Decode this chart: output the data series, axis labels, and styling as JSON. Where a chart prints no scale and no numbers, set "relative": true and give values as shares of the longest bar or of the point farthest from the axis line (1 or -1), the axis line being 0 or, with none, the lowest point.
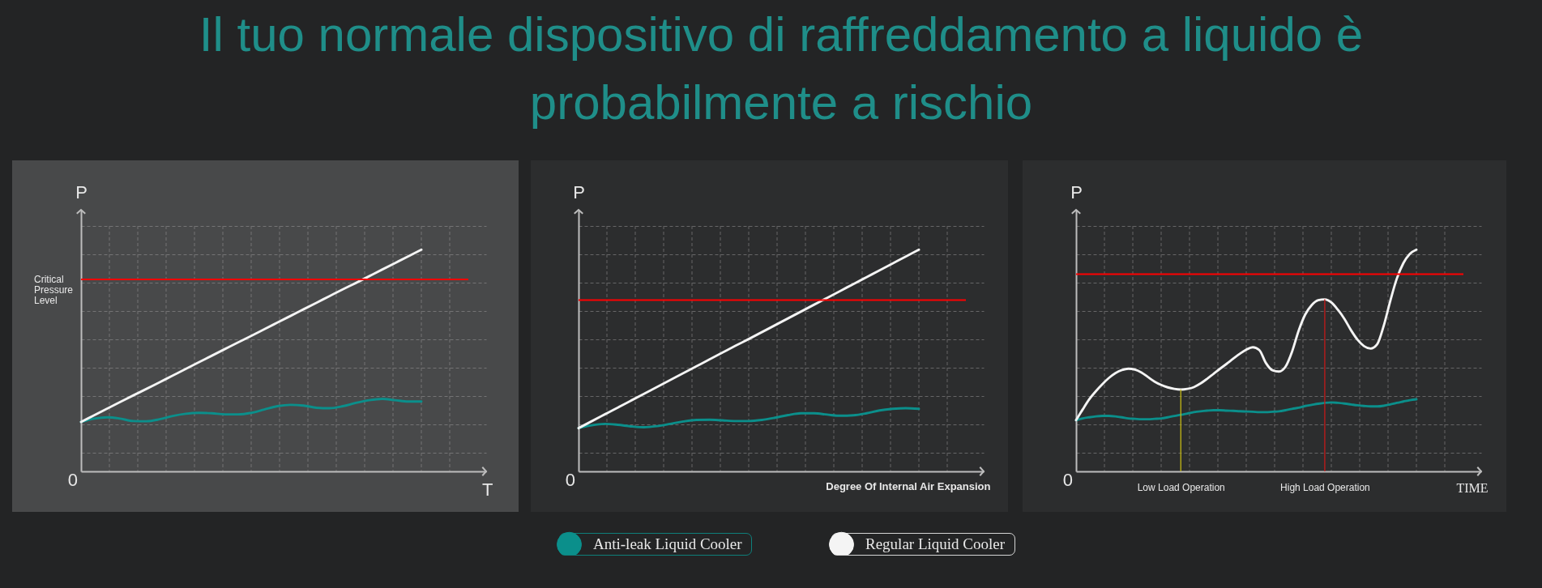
{
  "chart_data": [
    {
      "type": "line",
      "xlabel": "T",
      "ylabel": "P",
      "relative": true,
      "grid": true,
      "categories": [
        null,
        null,
        null,
        null,
        null,
        null,
        null,
        null,
        null,
        null,
        null,
        null,
        null,
        null,
        null,
        null,
        null,
        null,
        null,
        null,
        null,
        null,
        null,
        null,
        null,
        null,
        null
      ],
      "series": [
        {
          "color": "#0b8f8b",
          "values": [
            0.223,
            0.238,
            0.244,
            0.238,
            0.227,
            0.226,
            0.235,
            0.25,
            0.26,
            0.264,
            0.262,
            0.257,
            0.257,
            0.264,
            0.279,
            0.294,
            0.3,
            0.297,
            0.287,
            0.285,
            0.294,
            0.309,
            0.321,
            0.327,
            0.321,
            0.315,
            0.315
          ]
        },
        {
          "color": "#f4f4f4",
          "values": [
            0.223,
            0.253,
            0.283,
            0.313,
            0.343,
            0.372,
            0.402,
            0.432,
            0.462,
            0.492,
            0.522,
            0.552,
            0.582,
            0.611,
            0.641,
            0.671,
            0.701,
            0.731,
            0.761,
            0.791,
            0.821,
            0.85,
            0.88,
            0.91,
            0.94,
            0.97,
            1.0
          ]
        }
      ],
      "ref_lines": [
        {
          "axis": "y",
          "value": 0.866,
          "label": "Critical Pressure Level",
          "color": "#ff0000"
        }
      ],
      "annotations": [
        "0"
      ]
    },
    {
      "type": "line",
      "title": "Il tuo normale dispositivo di raffreddamento a liquido è probabilmente a rischio",
      "xlabel": "Degree Of Internal Air Expansion",
      "ylabel": "P",
      "relative": true,
      "grid": true,
      "legend": "bottom",
      "categories": [
        null,
        null,
        null,
        null,
        null,
        null,
        null,
        null,
        null,
        null,
        null,
        null,
        null,
        null,
        null,
        null,
        null,
        null,
        null,
        null,
        null,
        null,
        null,
        null,
        null,
        null,
        null
      ],
      "series": [
        {
          "name": "Anti-leak Liquid Cooler",
          "color": "#0b8f8b",
          "values": [
            0.195,
            0.208,
            0.214,
            0.21,
            0.203,
            0.199,
            0.204,
            0.214,
            0.225,
            0.232,
            0.233,
            0.23,
            0.227,
            0.227,
            0.232,
            0.242,
            0.254,
            0.262,
            0.262,
            0.256,
            0.251,
            0.253,
            0.262,
            0.275,
            0.282,
            0.285,
            0.282
          ]
        },
        {
          "name": "Regular Liquid Cooler",
          "color": "#f4f4f4",
          "values": [
            0.195,
            0.226,
            0.257,
            0.288,
            0.319,
            0.35,
            0.381,
            0.412,
            0.443,
            0.474,
            0.505,
            0.536,
            0.567,
            0.597,
            0.628,
            0.659,
            0.69,
            0.721,
            0.752,
            0.783,
            0.814,
            0.845,
            0.876,
            0.907,
            0.938,
            0.969,
            1.0
          ]
        }
      ],
      "ref_lines": [
        {
          "axis": "y",
          "value": 0.773,
          "color": "#ff0000"
        }
      ],
      "annotations": [
        "0"
      ]
    },
    {
      "type": "line",
      "xlabel": "TIME",
      "ylabel": "P",
      "relative": true,
      "grid": true,
      "categories": [
        null,
        null,
        null,
        null,
        null,
        null,
        null,
        null,
        null,
        null,
        null,
        null,
        null,
        null,
        null,
        null,
        "Low Load Operation",
        null,
        null,
        null,
        null,
        null,
        null,
        null,
        null,
        null,
        null,
        null,
        null,
        null,
        null,
        null,
        null,
        null,
        null,
        null,
        null,
        null,
        "High Load Operation",
        null,
        null,
        null,
        null,
        null,
        null,
        null,
        null,
        null,
        null,
        null,
        null,
        null,
        null
      ],
      "series": [
        {
          "color": "#0b8f8b",
          "values": [
            0.231,
            0.239,
            0.244,
            0.248,
            0.25,
            0.25,
            0.248,
            0.244,
            0.239,
            0.237,
            0.235,
            0.235,
            0.237,
            0.239,
            0.244,
            0.25,
            0.255,
            0.261,
            0.267,
            0.271,
            0.274,
            0.276,
            0.276,
            0.274,
            0.273,
            0.271,
            0.27,
            0.269,
            0.267,
            0.267,
            0.269,
            0.271,
            0.276,
            0.282,
            0.287,
            0.295,
            0.3,
            0.305,
            0.309,
            0.311,
            0.309,
            0.306,
            0.302,
            0.298,
            0.295,
            0.293,
            0.293,
            0.296,
            0.302,
            0.309,
            0.315,
            0.321,
            0.325
          ]
        },
        {
          "color": "#f4f4f4",
          "values": [
            0.231,
            0.279,
            0.325,
            0.361,
            0.393,
            0.421,
            0.443,
            0.457,
            0.463,
            0.459,
            0.446,
            0.425,
            0.405,
            0.39,
            0.379,
            0.372,
            0.369,
            0.372,
            0.38,
            0.396,
            0.417,
            0.44,
            0.463,
            0.485,
            0.508,
            0.53,
            0.549,
            0.56,
            0.547,
            0.489,
            0.456,
            0.45,
            0.472,
            0.54,
            0.634,
            0.707,
            0.75,
            0.772,
            0.776,
            0.762,
            0.729,
            0.688,
            0.637,
            0.594,
            0.565,
            0.554,
            0.573,
            0.656,
            0.768,
            0.869,
            0.939,
            0.981,
            1.0
          ]
        }
      ],
      "ref_lines": [
        {
          "axis": "y",
          "value": 0.89,
          "color": "#ff0000"
        },
        {
          "axis": "x",
          "value": "Low Load Operation",
          "color": "#c4b814"
        },
        {
          "axis": "x",
          "value": "High Load Operation",
          "color": "#c41a1a"
        }
      ],
      "annotations": [
        "0"
      ]
    }
  ]
}
